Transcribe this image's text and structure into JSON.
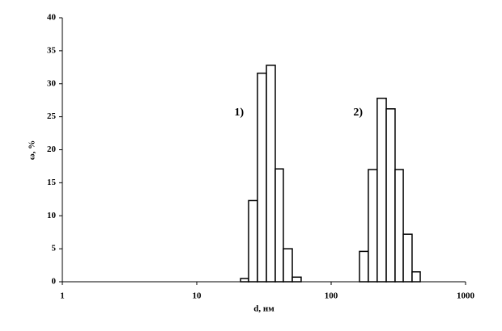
{
  "chart_data": {
    "type": "histogram",
    "x_label": "d, нм",
    "y_label": "ω, %",
    "xscale": "log",
    "xlim": [
      1,
      1000
    ],
    "xticks": [
      1,
      10,
      100,
      1000
    ],
    "ylim": [
      0,
      40
    ],
    "yticks": [
      0,
      5,
      10,
      15,
      20,
      25,
      30,
      35,
      40
    ],
    "grid": false,
    "series": [
      {
        "name": "1)",
        "color": "#ffffff",
        "bins": [
          21.2,
          24.3,
          28.3,
          33.0,
          38.4,
          44.1,
          51.4,
          59.8
        ],
        "values": [
          0.5,
          12.3,
          31.6,
          32.8,
          17.1,
          5.0,
          0.7
        ]
      },
      {
        "name": "2)",
        "color": "#ffffff",
        "bins": [
          162.5,
          189,
          220,
          257,
          299,
          344,
          400,
          460
        ],
        "values": [
          4.6,
          17.0,
          27.8,
          26.2,
          17.0,
          7.2,
          1.5
        ]
      }
    ]
  }
}
